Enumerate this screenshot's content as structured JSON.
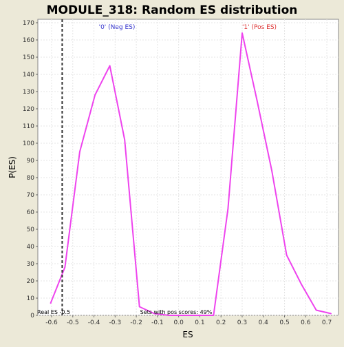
{
  "chart_data": {
    "type": "line",
    "title": "MODULE_318: Random ES distribution",
    "xlabel": "ES",
    "ylabel": "P(ES)",
    "xlim": [
      -0.665,
      0.755
    ],
    "ylim": [
      0,
      172
    ],
    "x_ticks": [
      -0.6,
      -0.5,
      -0.4,
      -0.3,
      -0.2,
      -0.1,
      0.0,
      0.1,
      0.2,
      0.3,
      0.4,
      0.5,
      0.6,
      0.7
    ],
    "x_tick_labels": [
      "-0.6",
      "-0.5",
      "-0.4",
      "-0.3",
      "-0.2",
      "-0.1",
      "0.0",
      "0.1",
      "0.2",
      "0.3",
      "0.4",
      "0.5",
      "0.6",
      "0.7"
    ],
    "y_ticks": [
      0,
      10,
      20,
      30,
      40,
      50,
      60,
      70,
      80,
      90,
      100,
      110,
      120,
      130,
      140,
      150,
      160,
      170
    ],
    "y_tick_labels": [
      "0",
      "10",
      "20",
      "30",
      "40",
      "50",
      "60",
      "70",
      "80",
      "90",
      "100",
      "110",
      "120",
      "130",
      "140",
      "150",
      "160",
      "170"
    ],
    "grid": true,
    "series": [
      {
        "color": "#ee44ee",
        "x": [
          -0.605,
          -0.537,
          -0.467,
          -0.395,
          -0.325,
          -0.255,
          -0.185,
          -0.115,
          -0.045,
          0.025,
          0.095,
          0.165,
          0.233,
          0.3,
          0.37,
          0.44,
          0.51,
          0.58,
          0.65,
          0.72
        ],
        "y": [
          7,
          28,
          95,
          128,
          145,
          102,
          5,
          1,
          0,
          0,
          0,
          0,
          62,
          164,
          125,
          84,
          35,
          18,
          3,
          1
        ]
      }
    ],
    "vline": {
      "x": -0.55,
      "style": "dashed",
      "color": "#333333"
    },
    "annotations": {
      "neg_label": "'0' (Neg ES)",
      "neg_color": "#3333cc",
      "pos_label": "'1' (Pos ES)",
      "pos_color": "#dd3333",
      "real_es": "Real ES -0.5",
      "sets_pos": "Sets with pos scores: 49%"
    },
    "plot_background": "#ffffff",
    "page_background": "#ece9d8"
  }
}
